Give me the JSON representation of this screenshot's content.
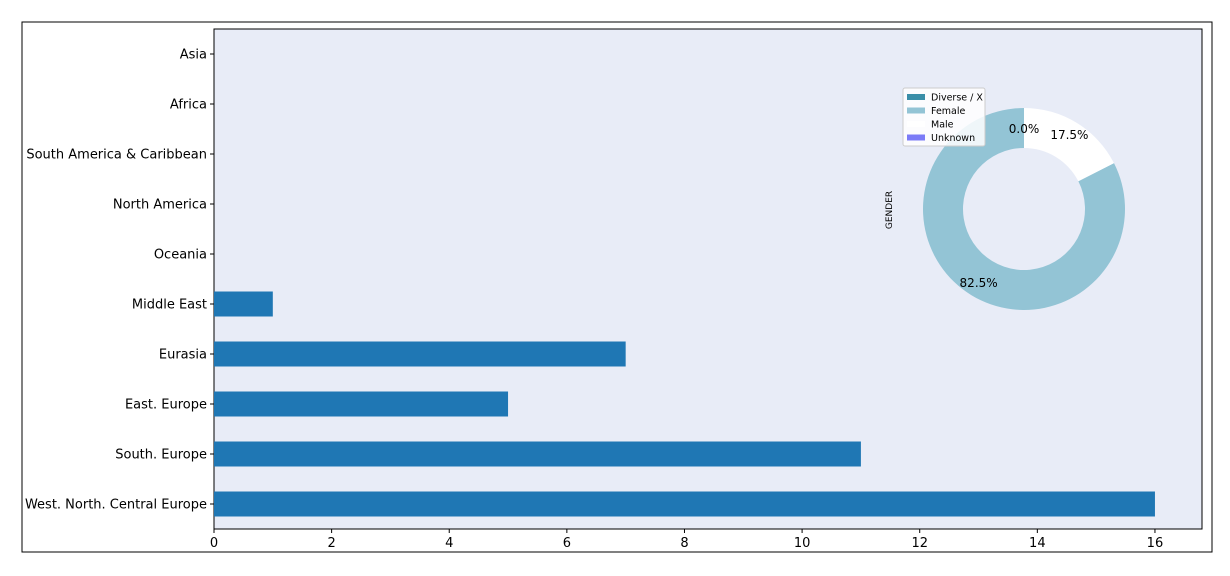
{
  "chart_data": [
    {
      "type": "bar",
      "orientation": "horizontal",
      "categories": [
        "Asia",
        "Africa",
        "South America & Caribbean",
        "North America",
        "Oceania",
        "Middle East",
        "Eurasia",
        "East. Europe",
        "South. Europe",
        "West. North. Central Europe"
      ],
      "values": [
        0,
        0,
        0,
        0,
        0,
        1,
        7,
        5,
        11,
        16
      ],
      "xlim": [
        0,
        16.8
      ],
      "xticks": [
        "0",
        "2",
        "4",
        "6",
        "8",
        "10",
        "12",
        "14",
        "16"
      ],
      "grid": false,
      "bar_color": "#1f77b4"
    },
    {
      "type": "pie",
      "style": "donut",
      "ylabel": "GENDER",
      "legend_position": "top-left",
      "slices": [
        {
          "label": "Diverse / X",
          "value": 0.0,
          "pct_label": "0.0%",
          "color": "#3a8ea8"
        },
        {
          "label": "Female",
          "value": 82.5,
          "pct_label": "82.5%",
          "color": "#93c4d5"
        },
        {
          "label": "Male",
          "value": 17.5,
          "pct_label": "17.5%",
          "color": "#ffffff"
        },
        {
          "label": "Unknown",
          "value": 0.0,
          "pct_label": "",
          "color": "#7b7bf7"
        }
      ]
    }
  ],
  "colors": {
    "axes_background": "#e8ecf7",
    "frame": "#000000"
  }
}
